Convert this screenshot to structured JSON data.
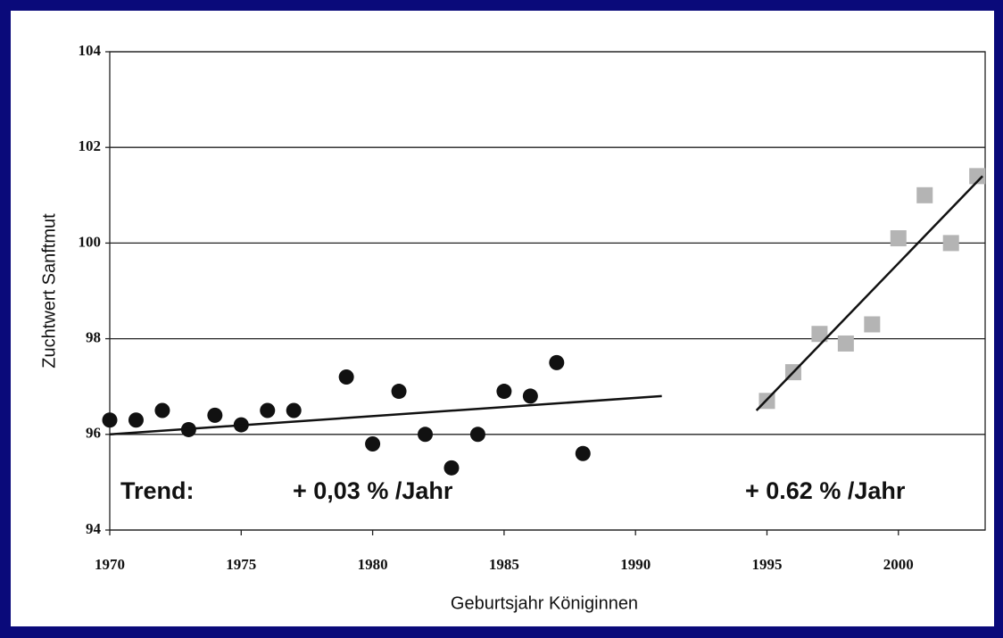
{
  "chart_data": {
    "type": "scatter",
    "ylabel": "Zuchtwert Sanftmut",
    "xlabel": "Geburtsjahr Königinnen",
    "xlim": [
      1970,
      2003.3
    ],
    "xticks": [
      1970,
      1975,
      1980,
      1985,
      1990,
      1995,
      2000
    ],
    "ylim": [
      94,
      104
    ],
    "yticks": [
      94,
      96,
      98,
      100,
      102,
      104
    ],
    "grid": true,
    "series": [
      {
        "marker": "circle",
        "color": "#111111",
        "x": [
          1970,
          1971,
          1972,
          1973,
          1974,
          1975,
          1976,
          1977,
          1979,
          1980,
          1981,
          1982,
          1983,
          1984,
          1985,
          1986,
          1987,
          1988
        ],
        "values": [
          96.3,
          96.3,
          96.5,
          96.1,
          96.4,
          96.2,
          96.5,
          96.5,
          97.2,
          95.8,
          96.9,
          96.0,
          95.3,
          96.0,
          96.9,
          96.8,
          97.5,
          95.6
        ]
      },
      {
        "marker": "square",
        "color": "#b4b4b4",
        "x": [
          1995,
          1996,
          1997,
          1998,
          1999,
          2000,
          2001,
          2002,
          2003
        ],
        "values": [
          96.7,
          97.3,
          98.1,
          97.9,
          98.3,
          100.1,
          101.0,
          100.0,
          101.4
        ]
      }
    ],
    "trendlines": [
      {
        "x": [
          1970,
          1991
        ],
        "values": [
          96.0,
          96.8
        ]
      },
      {
        "x": [
          1994.6,
          2003.2
        ],
        "values": [
          96.5,
          101.4
        ]
      }
    ],
    "annotations": [
      "Trend:",
      "+ 0,03 % /Jahr",
      "+ 0.62 % /Jahr"
    ]
  }
}
